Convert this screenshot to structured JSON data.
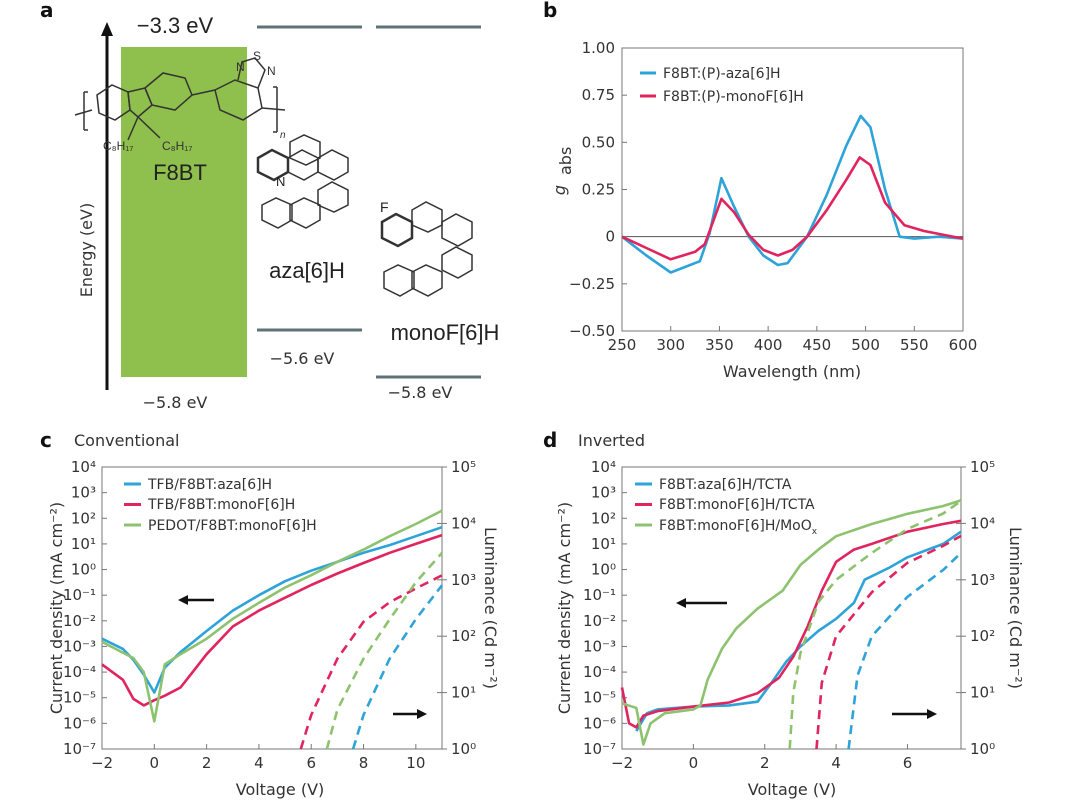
{
  "colors": {
    "blue": "#2ea3d9",
    "pink": "#e0245e",
    "green": "#8dc26f",
    "band": "#8fbf4d",
    "level": "#5f7377"
  },
  "panels": {
    "a": "a",
    "b": "b",
    "c": "c",
    "d": "d"
  },
  "panel_a": {
    "axis_label": "Energy (eV)",
    "f8bt_lumo": "−3.3 eV",
    "f8bt_homo": "−5.8 eV",
    "f8bt_label": "F8BT",
    "aza_label": "aza[6]H",
    "aza_homo": "−5.6 eV",
    "monof_label": "monoF[6]H",
    "monof_homo": "−5.8 eV",
    "atoms": {
      "S": "S",
      "N": "N",
      "F": "F",
      "n": "n",
      "c8h17": "C₈H₁₇"
    }
  },
  "chart_data": [
    {
      "id": "b",
      "type": "line",
      "title": "",
      "xlabel": "Wavelength (nm)",
      "ylabel": "g",
      "ylabel_sub": "abs",
      "xlim": [
        250,
        600
      ],
      "ylim": [
        -0.5,
        1.0
      ],
      "xticks": [
        250,
        300,
        350,
        400,
        450,
        500,
        550,
        600
      ],
      "yticks": [
        -0.5,
        -0.25,
        0,
        0.25,
        0.5,
        0.75,
        1.0
      ],
      "ytick_labels": [
        "−0.50",
        "−0.25",
        "0",
        "0.25",
        "0.50",
        "0.75",
        "1.00"
      ],
      "legend": "top-left",
      "series": [
        {
          "name": "F8BT:(P)-aza[6]H",
          "color": "blue",
          "x": [
            250,
            260,
            275,
            300,
            315,
            330,
            340,
            352,
            365,
            380,
            395,
            410,
            420,
            440,
            460,
            480,
            495,
            505,
            520,
            535,
            550,
            575,
            600
          ],
          "y": [
            0,
            -0.04,
            -0.1,
            -0.19,
            -0.16,
            -0.13,
            0.02,
            0.31,
            0.16,
            0,
            -0.1,
            -0.15,
            -0.14,
            0,
            0.22,
            0.48,
            0.64,
            0.58,
            0.25,
            0,
            -0.01,
            0,
            -0.01
          ]
        },
        {
          "name": "F8BT:(P)-monoF[6]H",
          "color": "pink",
          "x": [
            250,
            275,
            300,
            325,
            335,
            352,
            365,
            380,
            395,
            410,
            425,
            440,
            460,
            480,
            494,
            505,
            520,
            540,
            560,
            600
          ],
          "y": [
            0,
            -0.06,
            -0.12,
            -0.08,
            -0.04,
            0.2,
            0.13,
            0.01,
            -0.07,
            -0.1,
            -0.07,
            0,
            0.14,
            0.3,
            0.42,
            0.38,
            0.18,
            0.06,
            0.03,
            -0.01
          ]
        }
      ]
    },
    {
      "id": "c",
      "type": "line",
      "title": "Conventional",
      "xlabel": "Voltage (V)",
      "ylabel": "Current density (mA cm⁻²)",
      "y2label": "Luminance (Cd m⁻²)",
      "xlim": [
        -2,
        11
      ],
      "ylim_log10": [
        -7,
        4
      ],
      "y2lim_log10": [
        0,
        5
      ],
      "xticks": [
        -2,
        0,
        2,
        4,
        6,
        8,
        10
      ],
      "legend": "top-left",
      "series": [
        {
          "name": "TFB/F8BT:aza[6]H",
          "color": "blue",
          "axis": "left",
          "x": [
            -2,
            -1.2,
            -0.8,
            -0.4,
            0,
            0.4,
            1,
            2,
            3,
            4,
            5,
            6,
            7,
            8,
            9,
            10,
            11
          ],
          "y": [
            0.002,
            0.0008,
            0.0003,
            8e-05,
            1.6e-05,
            0.00015,
            0.0006,
            0.004,
            0.025,
            0.1,
            0.35,
            0.9,
            2,
            4.5,
            9,
            20,
            45
          ]
        },
        {
          "name": "TFB/F8BT:monoF[6]H",
          "color": "pink",
          "axis": "left",
          "x": [
            -2,
            -1.2,
            -0.8,
            -0.4,
            0,
            0.4,
            1,
            1.6,
            2,
            3,
            4,
            5,
            6,
            7,
            8,
            9,
            10,
            11
          ],
          "y": [
            0.0002,
            5e-05,
            9e-06,
            5e-06,
            8e-06,
            1.2e-05,
            2.5e-05,
            0.00015,
            0.0005,
            0.006,
            0.025,
            0.08,
            0.25,
            0.7,
            1.8,
            4.5,
            10,
            22
          ]
        },
        {
          "name": "PEDOT/F8BT:monoF[6]H",
          "color": "green",
          "axis": "left",
          "x": [
            -2,
            -0.8,
            -0.4,
            0,
            0.4,
            1,
            2,
            3,
            4,
            5,
            6,
            7,
            8,
            9,
            10,
            11
          ],
          "y": [
            0.0015,
            0.00035,
            0.0001,
            1.2e-06,
            0.0002,
            0.0005,
            0.002,
            0.012,
            0.05,
            0.2,
            0.6,
            2,
            6,
            20,
            60,
            200
          ]
        },
        {
          "name": "TFB/F8BT:monoF[6]H luminance",
          "color": "pink",
          "axis": "right",
          "dashed": true,
          "x": [
            5.6,
            6,
            7,
            8,
            9,
            10,
            11
          ],
          "y": [
            1,
            4,
            40,
            180,
            400,
            700,
            1200
          ]
        },
        {
          "name": "PEDOT/F8BT:monoF[6]H luminance",
          "color": "green",
          "axis": "right",
          "dashed": true,
          "x": [
            6.6,
            7,
            8,
            9,
            10,
            11
          ],
          "y": [
            1,
            5,
            40,
            200,
            900,
            3000
          ]
        },
        {
          "name": "TFB/F8BT:aza[6]H luminance",
          "color": "blue",
          "axis": "right",
          "dashed": true,
          "x": [
            7.6,
            8,
            9,
            10,
            11
          ],
          "y": [
            1,
            4,
            40,
            200,
            800
          ]
        }
      ]
    },
    {
      "id": "d",
      "type": "line",
      "title": "Inverted",
      "xlabel": "Voltage (V)",
      "ylabel": "Current density (mA cm⁻²)",
      "y2label": "Luminance (Cd m⁻²)",
      "xlim": [
        -2,
        7.5
      ],
      "ylim_log10": [
        -7,
        4
      ],
      "y2lim_log10": [
        0,
        5
      ],
      "xticks": [
        -2,
        0,
        2,
        4,
        6
      ],
      "legend": "top-left",
      "series": [
        {
          "name": "F8BT:aza[6]H/TCTA",
          "color": "blue",
          "axis": "left",
          "x": [
            -1.6,
            -1.3,
            -1,
            0,
            1,
            1.8,
            2.2,
            2.6,
            3,
            3.5,
            4,
            4.5,
            4.8,
            5.5,
            6,
            7,
            7.5
          ],
          "y": [
            5e-07,
            2.5e-06,
            3.5e-06,
            4.5e-06,
            5e-06,
            7e-06,
            4e-05,
            0.00025,
            0.001,
            0.004,
            0.012,
            0.05,
            0.4,
            1.2,
            3,
            10,
            30
          ]
        },
        {
          "name": "F8BT:monoF[6]H/TCTA",
          "color": "pink",
          "axis": "left",
          "x": [
            -2,
            -1.8,
            -1.6,
            -1.4,
            -1,
            0,
            1,
            1.8,
            2.4,
            2.8,
            3.2,
            3.6,
            4,
            4.5,
            5,
            6,
            7,
            7.5
          ],
          "y": [
            2.5e-05,
            1e-06,
            7e-07,
            2e-06,
            3e-06,
            4.5e-06,
            6.5e-06,
            1.5e-05,
            6e-05,
            0.0004,
            0.006,
            0.15,
            2,
            6,
            10,
            30,
            60,
            80
          ]
        },
        {
          "name": "F8BT:monoF[6]H/MoOx",
          "color": "green",
          "axis": "left",
          "x": [
            -2,
            -1.6,
            -1.4,
            -1.2,
            -0.8,
            0,
            0.2,
            0.4,
            0.8,
            1.2,
            1.8,
            2.5,
            3,
            3.5,
            4,
            5,
            6,
            7,
            7.5
          ],
          "y": [
            6e-06,
            4e-06,
            1.5e-07,
            1e-06,
            2.5e-06,
            3.5e-06,
            5e-06,
            5e-05,
            0.0008,
            0.005,
            0.03,
            0.15,
            1.5,
            6,
            20,
            60,
            150,
            300,
            500
          ]
        },
        {
          "name": "F8BT:monoF[6]H/MoOx luminance",
          "color": "green",
          "axis": "right",
          "dashed": true,
          "x": [
            2.7,
            2.8,
            3,
            3.5,
            4,
            5,
            6,
            7,
            7.5
          ],
          "y": [
            1,
            10,
            50,
            400,
            1000,
            3000,
            8000,
            15000,
            25000
          ]
        },
        {
          "name": "F8BT:monoF[6]H/TCTA luminance",
          "color": "pink",
          "axis": "right",
          "dashed": true,
          "x": [
            3.45,
            3.6,
            4,
            5,
            6,
            7,
            7.5
          ],
          "y": [
            1,
            15,
            100,
            600,
            2000,
            4000,
            6000
          ]
        },
        {
          "name": "F8BT:aza[6]H/TCTA luminance",
          "color": "blue",
          "axis": "right",
          "dashed": true,
          "x": [
            4.35,
            4.6,
            5,
            6,
            7,
            7.5
          ],
          "y": [
            1,
            20,
            100,
            500,
            1500,
            3000
          ]
        }
      ]
    }
  ]
}
